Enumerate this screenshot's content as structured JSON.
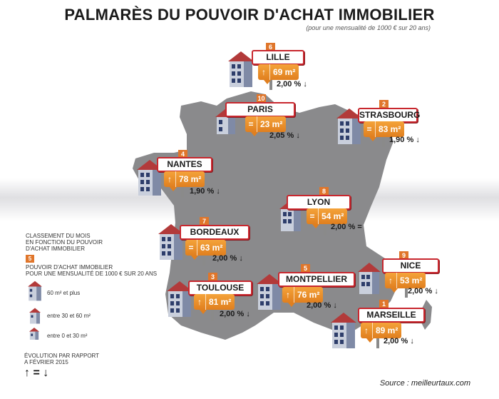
{
  "title": "PALMARÈS DU POUVOIR D'ACHAT IMMOBILIER",
  "subtitle": "(pour une mensualité de 1000 € sur 20 ans)",
  "source": "Source : meilleurtaux.com",
  "colors": {
    "map": "#8a8a8c",
    "accent": "#e0762b",
    "sign_border": "#c8272e"
  },
  "cities": [
    {
      "name": "LILLE",
      "rank": "6",
      "trend": "up",
      "trend_symbol": "↑",
      "surface": "69 m²",
      "evolution": "2,00 %",
      "evolution_arrow": "down",
      "evolution_symbol": "↓",
      "house": "large"
    },
    {
      "name": "PARIS",
      "rank": "10",
      "trend": "equal",
      "trend_symbol": "=",
      "surface": "23 m²",
      "evolution": "2,05 %",
      "evolution_arrow": "down",
      "evolution_symbol": "↓",
      "house": "small"
    },
    {
      "name": "STRASBOURG",
      "rank": "2",
      "trend": "equal",
      "trend_symbol": "=",
      "surface": "83 m²",
      "evolution": "1,90 %",
      "evolution_arrow": "down",
      "evolution_symbol": "↓",
      "house": "large"
    },
    {
      "name": "NANTES",
      "rank": "4",
      "trend": "up",
      "trend_symbol": "↑",
      "surface": "78 m²",
      "evolution": "1,90 %",
      "evolution_arrow": "down",
      "evolution_symbol": "↓",
      "house": "large"
    },
    {
      "name": "LYON",
      "rank": "8",
      "trend": "equal",
      "trend_symbol": "=",
      "surface": "54 m²",
      "evolution": "2,00 %",
      "evolution_arrow": "equal",
      "evolution_symbol": "=",
      "house": "medium"
    },
    {
      "name": "BORDEAUX",
      "rank": "7",
      "trend": "equal",
      "trend_symbol": "=",
      "surface": "63 m²",
      "evolution": "2,00 %",
      "evolution_arrow": "down",
      "evolution_symbol": "↓",
      "house": "large"
    },
    {
      "name": "NICE",
      "rank": "9",
      "trend": "up",
      "trend_symbol": "↑",
      "surface": "53 m²",
      "evolution": "2,00 %",
      "evolution_arrow": "down",
      "evolution_symbol": "↓",
      "house": "medium"
    },
    {
      "name": "MONTPELLIER",
      "rank": "5",
      "trend": "up",
      "trend_symbol": "↑",
      "surface": "76 m²",
      "evolution": "2,00 %",
      "evolution_arrow": "down",
      "evolution_symbol": "↓",
      "house": "large"
    },
    {
      "name": "TOULOUSE",
      "rank": "3",
      "trend": "up",
      "trend_symbol": "↑",
      "surface": "81 m²",
      "evolution": "2,00 %",
      "evolution_arrow": "down",
      "evolution_symbol": "↓",
      "house": "large"
    },
    {
      "name": "MARSEILLE",
      "rank": "1",
      "trend": "up",
      "trend_symbol": "↑",
      "surface": "89 m²",
      "evolution": "2,00 %",
      "evolution_arrow": "down",
      "evolution_symbol": "↓",
      "house": "large"
    }
  ],
  "legend": {
    "classement_lines": [
      "CLASSEMENT DU MOIS",
      "EN FONCTION DU POUVOIR",
      "D'ACHAT IMMOBILIER"
    ],
    "example_rank": "5",
    "pouvoir_lines": [
      "POUVOIR D'ACHAT IMMOBILIER",
      "POUR UNE MENSUALITÉ DE 1000 € SUR 20 ANS"
    ],
    "sizes": [
      {
        "label": "60 m² et plus",
        "house": "large"
      },
      {
        "label": "entre 30 et 60 m²",
        "house": "medium"
      },
      {
        "label": "entre 0 et 30 m²",
        "house": "small"
      }
    ],
    "evolution_lines": [
      "ÉVOLUTION PAR RAPPORT",
      "A FÉVRIER 2015"
    ],
    "evolution_symbols": "↑ = ↓"
  }
}
